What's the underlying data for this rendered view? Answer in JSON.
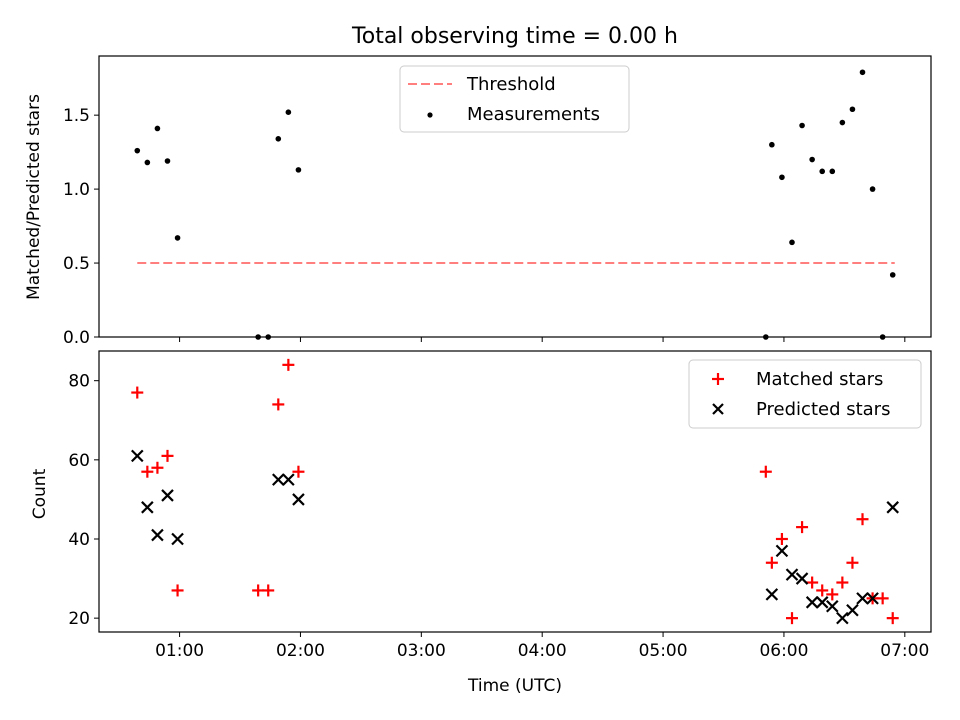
{
  "chart_data": [
    {
      "type": "scatter",
      "title": "Total observing time = 0.00 h",
      "ylabel": "Matched/Predicted stars",
      "xlabel": "",
      "xlim": [
        "00:20",
        "07:13"
      ],
      "ylim": [
        0,
        1.9
      ],
      "yticks": [
        {
          "v": 0.0,
          "label": "0.0"
        },
        {
          "v": 0.5,
          "label": "0.5"
        },
        {
          "v": 1.0,
          "label": "1.0"
        },
        {
          "v": 1.5,
          "label": "1.5"
        }
      ],
      "xticks": [
        "01:00",
        "02:00",
        "03:00",
        "04:00",
        "05:00",
        "06:00",
        "07:00"
      ],
      "show_xtick_labels": false,
      "legend_position": "top-center",
      "threshold": {
        "name": "Threshold",
        "value": 0.5,
        "x_range": [
          "00:39",
          "06:55"
        ],
        "color": "#ff7f7f",
        "style": "dashed"
      },
      "series": [
        {
          "name": "Measurements",
          "marker": "dot",
          "color": "#000000",
          "points": [
            [
              "00:39",
              1.26
            ],
            [
              "00:44",
              1.18
            ],
            [
              "00:49",
              1.41
            ],
            [
              "00:54",
              1.19
            ],
            [
              "00:59",
              0.67
            ],
            [
              "01:39",
              0.0
            ],
            [
              "01:44",
              0.0
            ],
            [
              "01:49",
              1.34
            ],
            [
              "01:54",
              1.52
            ],
            [
              "01:59",
              1.13
            ],
            [
              "05:51",
              0.0
            ],
            [
              "05:54",
              1.3
            ],
            [
              "05:59",
              1.08
            ],
            [
              "06:04",
              0.64
            ],
            [
              "06:09",
              1.43
            ],
            [
              "06:14",
              1.2
            ],
            [
              "06:19",
              1.12
            ],
            [
              "06:24",
              1.12
            ],
            [
              "06:29",
              1.45
            ],
            [
              "06:34",
              1.54
            ],
            [
              "06:39",
              1.79
            ],
            [
              "06:44",
              1.0
            ],
            [
              "06:49",
              0.0
            ],
            [
              "06:54",
              0.42
            ]
          ]
        }
      ]
    },
    {
      "type": "scatter",
      "title": "",
      "ylabel": "Count",
      "xlabel": "Time (UTC)",
      "xlim": [
        "00:20",
        "07:13"
      ],
      "ylim": [
        16.5,
        87.5
      ],
      "yticks": [
        {
          "v": 20,
          "label": "20"
        },
        {
          "v": 40,
          "label": "40"
        },
        {
          "v": 60,
          "label": "60"
        },
        {
          "v": 80,
          "label": "80"
        }
      ],
      "xticks": [
        "01:00",
        "02:00",
        "03:00",
        "04:00",
        "05:00",
        "06:00",
        "07:00"
      ],
      "show_xtick_labels": true,
      "legend_position": "top-right",
      "series": [
        {
          "name": "Matched stars",
          "marker": "plus",
          "color": "#ff0000",
          "points": [
            [
              "00:39",
              77
            ],
            [
              "00:44",
              57
            ],
            [
              "00:49",
              58
            ],
            [
              "00:54",
              61
            ],
            [
              "00:59",
              27
            ],
            [
              "01:39",
              27
            ],
            [
              "01:44",
              27
            ],
            [
              "01:49",
              74
            ],
            [
              "01:54",
              84
            ],
            [
              "01:59",
              57
            ],
            [
              "05:51",
              57
            ],
            [
              "05:54",
              34
            ],
            [
              "05:59",
              40
            ],
            [
              "06:04",
              20
            ],
            [
              "06:09",
              43
            ],
            [
              "06:14",
              29
            ],
            [
              "06:19",
              27
            ],
            [
              "06:24",
              26
            ],
            [
              "06:29",
              29
            ],
            [
              "06:34",
              34
            ],
            [
              "06:39",
              45
            ],
            [
              "06:44",
              25
            ],
            [
              "06:49",
              25
            ],
            [
              "06:54",
              20
            ]
          ]
        },
        {
          "name": "Predicted stars",
          "marker": "x",
          "color": "#000000",
          "points": [
            [
              "00:39",
              61
            ],
            [
              "00:44",
              48
            ],
            [
              "00:49",
              41
            ],
            [
              "00:54",
              51
            ],
            [
              "00:59",
              40
            ],
            [
              "01:49",
              55
            ],
            [
              "01:54",
              55
            ],
            [
              "01:59",
              50
            ],
            [
              "05:54",
              26
            ],
            [
              "05:59",
              37
            ],
            [
              "06:04",
              31
            ],
            [
              "06:09",
              30
            ],
            [
              "06:14",
              24
            ],
            [
              "06:19",
              24
            ],
            [
              "06:24",
              23
            ],
            [
              "06:29",
              20
            ],
            [
              "06:34",
              22
            ],
            [
              "06:39",
              25
            ],
            [
              "06:44",
              25
            ],
            [
              "06:54",
              48
            ]
          ]
        }
      ]
    }
  ]
}
